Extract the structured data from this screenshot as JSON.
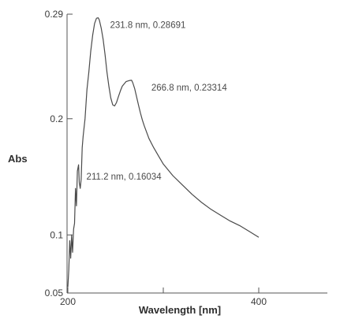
{
  "chart_data": {
    "type": "line",
    "xlabel": "Wavelength [nm]",
    "ylabel": "Abs",
    "xlim": [
      200,
      420
    ],
    "ylim": [
      0.05,
      0.29
    ],
    "x_ticks": [
      200,
      300,
      400
    ],
    "x_tick_labels": [
      "200",
      "",
      "400"
    ],
    "y_ticks": [
      0.05,
      0.1,
      0.2,
      0.29
    ],
    "y_tick_labels": [
      "0.05",
      "0.1",
      "0.2",
      "0.29"
    ],
    "grid": false,
    "line_color": "#4a4a4a",
    "series": [
      {
        "x": [
          200,
          201,
          202,
          203,
          204,
          205,
          206,
          207,
          208,
          209,
          210,
          211.2,
          212,
          213,
          214,
          215,
          216,
          218,
          220,
          222,
          224,
          226,
          228,
          230,
          231.8,
          233,
          235,
          237,
          239,
          241,
          243,
          245,
          247,
          249,
          251,
          253,
          255,
          257,
          259,
          261,
          263,
          265,
          266.8,
          268,
          270,
          272,
          274,
          276,
          278,
          280,
          285,
          290,
          295,
          300,
          310,
          320,
          330,
          340,
          350,
          360,
          370,
          380,
          390,
          400
        ],
        "y": [
          0.055,
          0.07,
          0.095,
          0.08,
          0.1,
          0.085,
          0.105,
          0.11,
          0.14,
          0.125,
          0.155,
          0.16034,
          0.145,
          0.14,
          0.148,
          0.175,
          0.185,
          0.2,
          0.225,
          0.24,
          0.258,
          0.272,
          0.282,
          0.2865,
          0.28691,
          0.285,
          0.278,
          0.268,
          0.255,
          0.24,
          0.228,
          0.218,
          0.212,
          0.211,
          0.214,
          0.219,
          0.224,
          0.228,
          0.23,
          0.232,
          0.2325,
          0.233,
          0.23314,
          0.231,
          0.226,
          0.219,
          0.212,
          0.205,
          0.199,
          0.194,
          0.183,
          0.175,
          0.168,
          0.161,
          0.151,
          0.143,
          0.135,
          0.128,
          0.122,
          0.117,
          0.112,
          0.108,
          0.103,
          0.098
        ]
      }
    ],
    "annotations": [
      {
        "text": "231.8 nm, 0.28691",
        "x": 231.8,
        "y": 0.28691
      },
      {
        "text": "266.8 nm, 0.23314",
        "x": 266.8,
        "y": 0.23314
      },
      {
        "text": "211.2 nm, 0.16034",
        "x": 211.2,
        "y": 0.16034
      }
    ]
  }
}
